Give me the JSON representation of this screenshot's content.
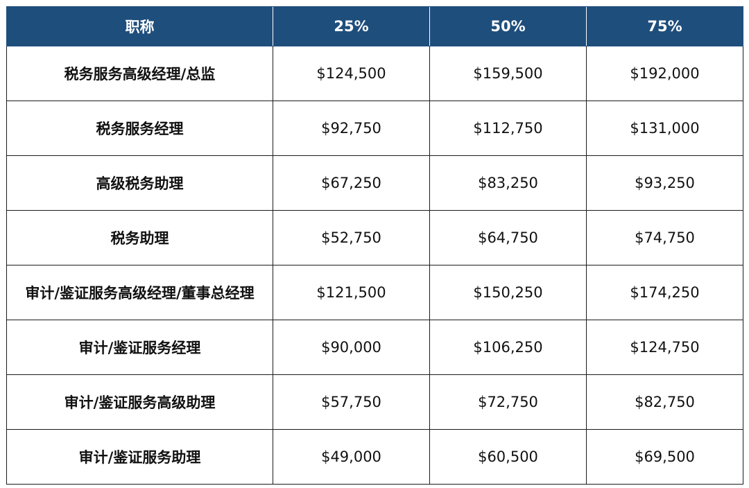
{
  "table": {
    "headers": [
      "职称",
      "25%",
      "50%",
      "75%"
    ],
    "rows": [
      {
        "title": "税务服务高级经理/总监",
        "p25": "$124,500",
        "p50": "$159,500",
        "p75": "$192,000"
      },
      {
        "title": "税务服务经理",
        "p25": "$92,750",
        "p50": "$112,750",
        "p75": "$131,000"
      },
      {
        "title": "高级税务助理",
        "p25": "$67,250",
        "p50": "$83,250",
        "p75": "$93,250"
      },
      {
        "title": "税务助理",
        "p25": "$52,750",
        "p50": "$64,750",
        "p75": "$74,750"
      },
      {
        "title": "审计/鉴证服务高级经理/董事总经理",
        "p25": "$121,500",
        "p50": "$150,250",
        "p75": "$174,250"
      },
      {
        "title": "审计/鉴证服务经理",
        "p25": "$90,000",
        "p50": "$106,250",
        "p75": "$124,750"
      },
      {
        "title": "审计/鉴证服务高级助理",
        "p25": "$57,750",
        "p50": "$72,750",
        "p75": "$82,750"
      },
      {
        "title": "审计/鉴证服务助理",
        "p25": "$49,000",
        "p50": "$60,500",
        "p75": "$69,500"
      }
    ]
  },
  "colors": {
    "header_background": "#1e4e7c",
    "header_text": "#ffffff",
    "border": "#1a1a1a"
  }
}
